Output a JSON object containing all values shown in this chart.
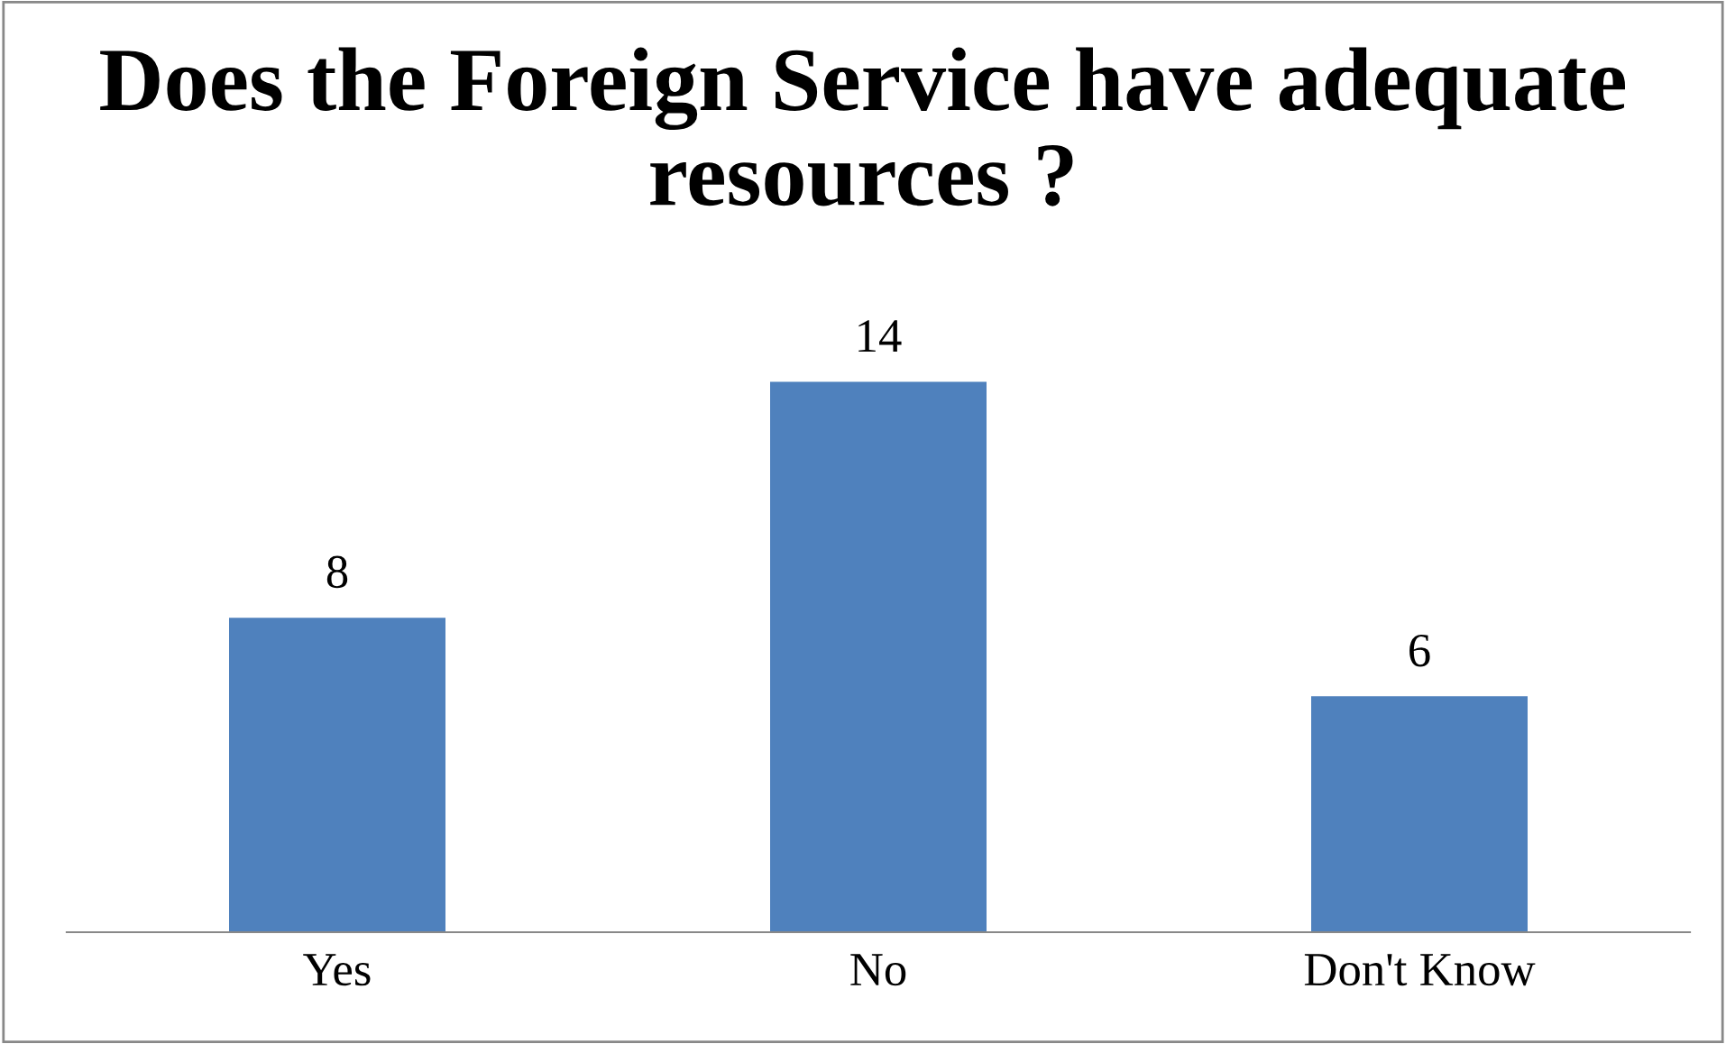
{
  "chart_data": {
    "type": "bar",
    "title": "Does the Foreign Service have adequate resources ?",
    "categories": [
      "Yes",
      "No",
      "Don't Know"
    ],
    "values": [
      8,
      14,
      6
    ],
    "color": "#4f81bd",
    "data_labels": true
  }
}
